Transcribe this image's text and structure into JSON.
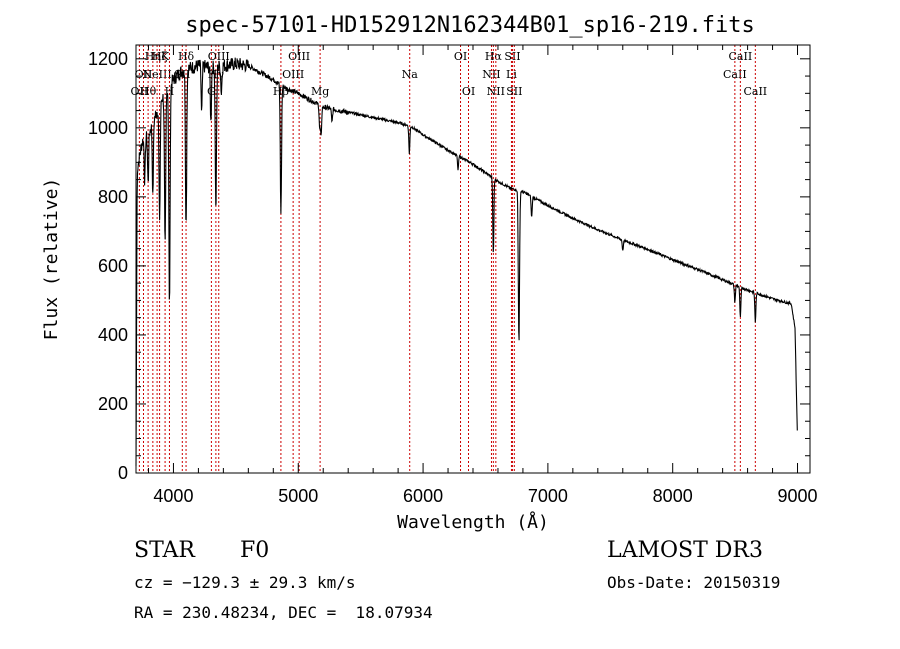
{
  "chart_data": {
    "type": "line",
    "title": "spec-57101-HD152912N162344B01_sp16-219.fits",
    "xlabel": "Wavelength (Å)",
    "ylabel": "Flux (relative)",
    "xlim": [
      3700,
      9100
    ],
    "ylim": [
      0,
      1240
    ],
    "xticks": [
      4000,
      5000,
      6000,
      7000,
      8000,
      9000
    ],
    "yticks": [
      0,
      200,
      400,
      600,
      800,
      1000,
      1200
    ],
    "line_color": "#000000",
    "marker_color": "#cc0000",
    "continuum": [
      [
        3700,
        20
      ],
      [
        3710,
        880
      ],
      [
        3750,
        960
      ],
      [
        3800,
        980
      ],
      [
        3860,
        1040
      ],
      [
        3900,
        1080
      ],
      [
        3950,
        1110
      ],
      [
        4000,
        1140
      ],
      [
        4050,
        1160
      ],
      [
        4100,
        1170
      ],
      [
        4200,
        1180
      ],
      [
        4300,
        1175
      ],
      [
        4400,
        1180
      ],
      [
        4500,
        1185
      ],
      [
        4600,
        1180
      ],
      [
        4700,
        1160
      ],
      [
        4800,
        1140
      ],
      [
        4900,
        1115
      ],
      [
        5000,
        1100
      ],
      [
        5100,
        1080
      ],
      [
        5200,
        1060
      ],
      [
        5400,
        1045
      ],
      [
        5600,
        1030
      ],
      [
        5800,
        1015
      ],
      [
        5900,
        1005
      ],
      [
        6000,
        980
      ],
      [
        6200,
        935
      ],
      [
        6400,
        895
      ],
      [
        6500,
        870
      ],
      [
        6600,
        845
      ],
      [
        6700,
        825
      ],
      [
        6800,
        815
      ],
      [
        7000,
        775
      ],
      [
        7200,
        738
      ],
      [
        7400,
        705
      ],
      [
        7600,
        675
      ],
      [
        7800,
        648
      ],
      [
        8000,
        618
      ],
      [
        8200,
        590
      ],
      [
        8400,
        560
      ],
      [
        8600,
        530
      ],
      [
        8800,
        505
      ],
      [
        8950,
        490
      ],
      [
        8980,
        420
      ],
      [
        9000,
        90
      ]
    ],
    "absorptions": [
      {
        "x": 3770,
        "depth": 120
      },
      {
        "x": 3797,
        "depth": 140
      },
      {
        "x": 3835,
        "depth": 220
      },
      {
        "x": 3889,
        "depth": 330
      },
      {
        "x": 3933,
        "depth": 450
      },
      {
        "x": 3968,
        "depth": 640
      },
      {
        "x": 4101,
        "depth": 450
      },
      {
        "x": 4226,
        "depth": 140
      },
      {
        "x": 4300,
        "depth": 160
      },
      {
        "x": 4340,
        "depth": 420
      },
      {
        "x": 4384,
        "depth": 80
      },
      {
        "x": 4861,
        "depth": 370
      },
      {
        "x": 5172,
        "depth": 70
      },
      {
        "x": 5183,
        "depth": 90
      },
      {
        "x": 5270,
        "depth": 40
      },
      {
        "x": 5890,
        "depth": 80
      },
      {
        "x": 6280,
        "depth": 40
      },
      {
        "x": 6563,
        "depth": 220
      },
      {
        "x": 6870,
        "depth": 60
      },
      {
        "x": 6768,
        "depth": 440
      },
      {
        "x": 7600,
        "depth": 30
      },
      {
        "x": 8498,
        "depth": 50
      },
      {
        "x": 8542,
        "depth": 90
      },
      {
        "x": 8662,
        "depth": 85
      }
    ],
    "lines": [
      {
        "x": 3727,
        "label": "OII",
        "row": 3
      },
      {
        "x": 3760,
        "label": "OII",
        "row": 2
      },
      {
        "x": 3797,
        "label": "Hθ",
        "row": 3
      },
      {
        "x": 3835,
        "label": "Hη",
        "row": 1
      },
      {
        "x": 3869,
        "label": "NeIII",
        "row": 2
      },
      {
        "x": 3889,
        "label": "Hζ",
        "row": 1
      },
      {
        "x": 3933,
        "label": "K",
        "row": 1
      },
      {
        "x": 3968,
        "label": "H",
        "row": 3
      },
      {
        "x": 4071,
        "label": "SII",
        "row": 2
      },
      {
        "x": 4101,
        "label": "Hδ",
        "row": 1
      },
      {
        "x": 4304,
        "label": "G",
        "row": 3
      },
      {
        "x": 4340,
        "label": "Hγ",
        "row": 2
      },
      {
        "x": 4363,
        "label": "OIII",
        "row": 1
      },
      {
        "x": 4861,
        "label": "Hβ",
        "row": 3
      },
      {
        "x": 4959,
        "label": "OIII",
        "row": 2
      },
      {
        "x": 5007,
        "label": "OIII",
        "row": 1
      },
      {
        "x": 5175,
        "label": "Mg",
        "row": 3
      },
      {
        "x": 5893,
        "label": "Na",
        "row": 2
      },
      {
        "x": 6300,
        "label": "OI",
        "row": 1
      },
      {
        "x": 6364,
        "label": "OI",
        "row": 3
      },
      {
        "x": 6548,
        "label": "NII",
        "row": 2
      },
      {
        "x": 6563,
        "label": "Hα",
        "row": 1
      },
      {
        "x": 6583,
        "label": "NII",
        "row": 3
      },
      {
        "x": 6708,
        "label": "Li",
        "row": 2
      },
      {
        "x": 6716,
        "label": "SII",
        "row": 1
      },
      {
        "x": 6731,
        "label": "SII",
        "row": 3
      },
      {
        "x": 8498,
        "label": "CaII",
        "row": 2
      },
      {
        "x": 8542,
        "label": "CaII",
        "row": 1
      },
      {
        "x": 8662,
        "label": "CaII",
        "row": 3
      }
    ]
  },
  "info": {
    "class": "STAR",
    "subclass": "F0",
    "survey": "LAMOST DR3",
    "cz": "cz = −129.3 ± 29.3 km/s",
    "obs_date": "Obs-Date: 20150319",
    "coords": "RA = 230.48234, DEC =  18.07934"
  }
}
